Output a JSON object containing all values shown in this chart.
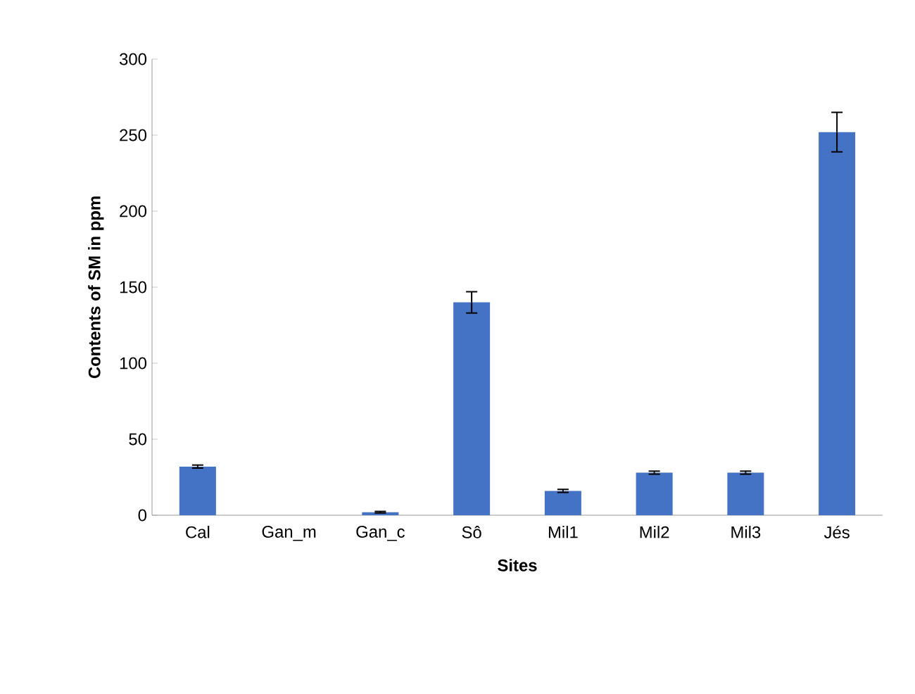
{
  "chart_data": {
    "type": "bar",
    "xlabel": "Sites",
    "ylabel": "Contents of SM in  ppm",
    "categories": [
      "Cal",
      "Gan_m",
      "Gan_c",
      "Sô",
      "Mil1",
      "Mil2",
      "Mil3",
      "Jés"
    ],
    "values": [
      32,
      0,
      2,
      140,
      16,
      28,
      28,
      252
    ],
    "errors": [
      1,
      null,
      0.5,
      7,
      1,
      1,
      1,
      13
    ],
    "color": "#4472c4",
    "ylim": [
      0,
      300
    ],
    "yticks": [
      0,
      50,
      100,
      150,
      200,
      250,
      300
    ]
  }
}
